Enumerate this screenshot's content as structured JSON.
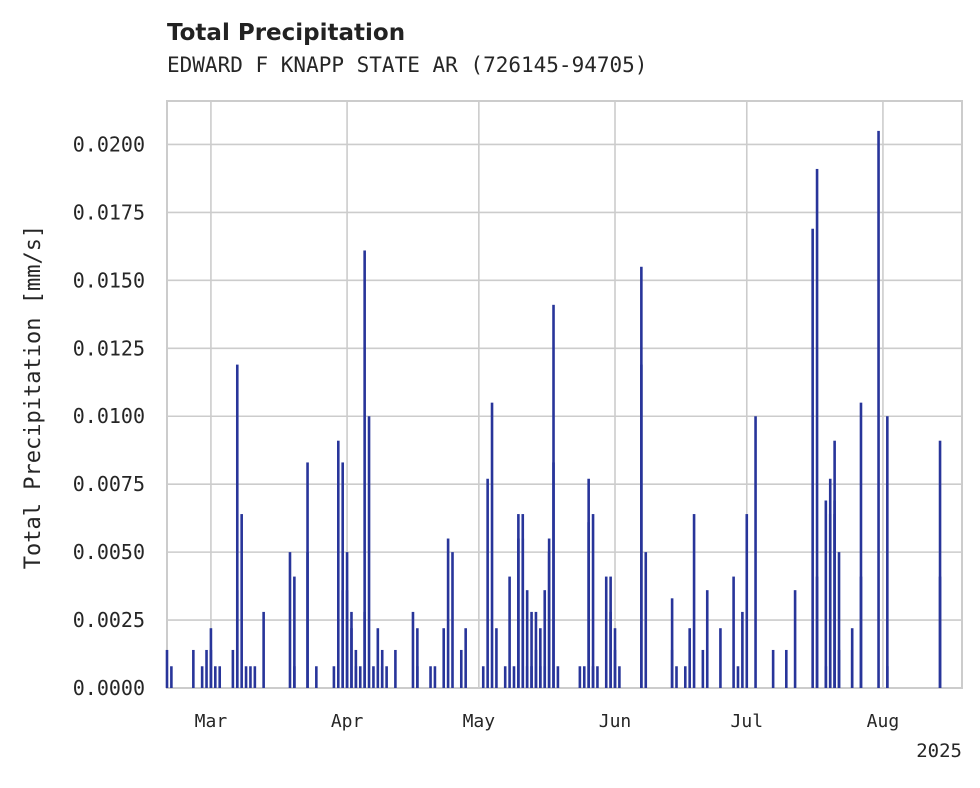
{
  "chart_data": {
    "type": "bar",
    "title": "Total Precipitation",
    "subtitle": "EDWARD F KNAPP STATE AR (726145-94705)",
    "ylabel": "Total Precipitation [mm/s]",
    "xlabel": "",
    "x_start": "2025-02-19",
    "x_end": "2025-08-19",
    "ylim": [
      0,
      0.0216
    ],
    "yticks": [
      "0.0000",
      "0.0025",
      "0.0050",
      "0.0075",
      "0.0100",
      "0.0125",
      "0.0150",
      "0.0175",
      "0.0200"
    ],
    "xticks": [
      {
        "date": "2025-03-01",
        "label": "Mar"
      },
      {
        "date": "2025-04-01",
        "label": "Apr"
      },
      {
        "date": "2025-05-01",
        "label": "May"
      },
      {
        "date": "2025-06-01",
        "label": "Jun"
      },
      {
        "date": "2025-07-01",
        "label": "Jul"
      },
      {
        "date": "2025-08-01",
        "label": "Aug"
      }
    ],
    "year_label": "2025",
    "grid": true,
    "bar_color": "#28359a",
    "series": [
      {
        "values": [
          [
            "2025-02-19",
            0.0014
          ],
          [
            "2025-02-20",
            0.0008
          ],
          [
            "2025-02-25",
            0.0014
          ],
          [
            "2025-02-27",
            0.0008
          ],
          [
            "2025-02-28",
            0.0014
          ],
          [
            "2025-03-01",
            0.0022
          ],
          [
            "2025-03-01",
            0.0014
          ],
          [
            "2025-03-02",
            0.0008
          ],
          [
            "2025-03-03",
            0.0008
          ],
          [
            "2025-03-06",
            0.0014
          ],
          [
            "2025-03-07",
            0.0036
          ],
          [
            "2025-03-07",
            0.0119
          ],
          [
            "2025-03-08",
            0.0064
          ],
          [
            "2025-03-09",
            0.0008
          ],
          [
            "2025-03-10",
            0.0008
          ],
          [
            "2025-03-11",
            0.0008
          ],
          [
            "2025-03-13",
            0.0028
          ],
          [
            "2025-03-19",
            0.005
          ],
          [
            "2025-03-20",
            0.0041
          ],
          [
            "2025-03-20",
            0.0008
          ],
          [
            "2025-03-23",
            0.0083
          ],
          [
            "2025-03-23",
            0.005
          ],
          [
            "2025-03-25",
            0.0008
          ],
          [
            "2025-03-29",
            0.0008
          ],
          [
            "2025-03-30",
            0.0091
          ],
          [
            "2025-03-31",
            0.0083
          ],
          [
            "2025-03-31",
            0.0036
          ],
          [
            "2025-04-01",
            0.005
          ],
          [
            "2025-04-01",
            0.0036
          ],
          [
            "2025-04-02",
            0.0028
          ],
          [
            "2025-04-02",
            0.0022
          ],
          [
            "2025-04-03",
            0.0014
          ],
          [
            "2025-04-03",
            0.0008
          ],
          [
            "2025-04-04",
            0.0008
          ],
          [
            "2025-04-05",
            0.0028
          ],
          [
            "2025-04-05",
            0.0161
          ],
          [
            "2025-04-06",
            0.01
          ],
          [
            "2025-04-07",
            0.0008
          ],
          [
            "2025-04-08",
            0.0022
          ],
          [
            "2025-04-09",
            0.0014
          ],
          [
            "2025-04-09",
            0.0008
          ],
          [
            "2025-04-10",
            0.0008
          ],
          [
            "2025-04-12",
            0.0014
          ],
          [
            "2025-04-16",
            0.0028
          ],
          [
            "2025-04-17",
            0.0022
          ],
          [
            "2025-04-17",
            0.0008
          ],
          [
            "2025-04-20",
            0.0008
          ],
          [
            "2025-04-21",
            0.0008
          ],
          [
            "2025-04-23",
            0.0022
          ],
          [
            "2025-04-24",
            0.0055
          ],
          [
            "2025-04-25",
            0.005
          ],
          [
            "2025-04-27",
            0.0014
          ],
          [
            "2025-04-28",
            0.0022
          ],
          [
            "2025-05-02",
            0.0008
          ],
          [
            "2025-05-03",
            0.0077
          ],
          [
            "2025-05-04",
            0.0105
          ],
          [
            "2025-05-05",
            0.0022
          ],
          [
            "2025-05-07",
            0.0008
          ],
          [
            "2025-05-08",
            0.0041
          ],
          [
            "2025-05-09",
            0.0008
          ],
          [
            "2025-05-10",
            0.0064
          ],
          [
            "2025-05-10",
            0.0055
          ],
          [
            "2025-05-11",
            0.0064
          ],
          [
            "2025-05-11",
            0.0055
          ],
          [
            "2025-05-12",
            0.0036
          ],
          [
            "2025-05-12",
            0.0008
          ],
          [
            "2025-05-13",
            0.0028
          ],
          [
            "2025-05-13",
            0.0008
          ],
          [
            "2025-05-14",
            0.0028
          ],
          [
            "2025-05-14",
            0.0014
          ],
          [
            "2025-05-15",
            0.0022
          ],
          [
            "2025-05-15",
            0.0008
          ],
          [
            "2025-05-16",
            0.0036
          ],
          [
            "2025-05-16",
            0.0008
          ],
          [
            "2025-05-17",
            0.005
          ],
          [
            "2025-05-17",
            0.0055
          ],
          [
            "2025-05-18",
            0.0083
          ],
          [
            "2025-05-18",
            0.0141
          ],
          [
            "2025-05-19",
            0.0008
          ],
          [
            "2025-05-24",
            0.0008
          ],
          [
            "2025-05-25",
            0.0008
          ],
          [
            "2025-05-26",
            0.0061
          ],
          [
            "2025-05-26",
            0.0077
          ],
          [
            "2025-05-27",
            0.0064
          ],
          [
            "2025-05-27",
            0.0008
          ],
          [
            "2025-05-28",
            0.0008
          ],
          [
            "2025-05-30",
            0.0041
          ],
          [
            "2025-05-31",
            0.0041
          ],
          [
            "2025-05-31",
            0.0028
          ],
          [
            "2025-06-01",
            0.0022
          ],
          [
            "2025-06-01",
            0.0014
          ],
          [
            "2025-06-02",
            0.0008
          ],
          [
            "2025-06-07",
            0.0119
          ],
          [
            "2025-06-07",
            0.0155
          ],
          [
            "2025-06-08",
            0.005
          ],
          [
            "2025-06-14",
            0.0033
          ],
          [
            "2025-06-14",
            0.0014
          ],
          [
            "2025-06-15",
            0.0008
          ],
          [
            "2025-06-17",
            0.0008
          ],
          [
            "2025-06-18",
            0.0022
          ],
          [
            "2025-06-19",
            0.0064
          ],
          [
            "2025-06-21",
            0.0014
          ],
          [
            "2025-06-22",
            0.0036
          ],
          [
            "2025-06-25",
            0.0022
          ],
          [
            "2025-06-28",
            0.0041
          ],
          [
            "2025-06-29",
            0.0008
          ],
          [
            "2025-06-30",
            0.0028
          ],
          [
            "2025-07-01",
            0.0064
          ],
          [
            "2025-07-03",
            0.01
          ],
          [
            "2025-07-07",
            0.0014
          ],
          [
            "2025-07-10",
            0.0014
          ],
          [
            "2025-07-12",
            0.0036
          ],
          [
            "2025-07-16",
            0.0169
          ],
          [
            "2025-07-17",
            0.0041
          ],
          [
            "2025-07-17",
            0.0191
          ],
          [
            "2025-07-19",
            0.0008
          ],
          [
            "2025-07-19",
            0.0069
          ],
          [
            "2025-07-20",
            0.0077
          ],
          [
            "2025-07-20",
            0.0064
          ],
          [
            "2025-07-21",
            0.0091
          ],
          [
            "2025-07-21",
            0.0069
          ],
          [
            "2025-07-21",
            0.0064
          ],
          [
            "2025-07-22",
            0.005
          ],
          [
            "2025-07-22",
            0.0014
          ],
          [
            "2025-07-25",
            0.0022
          ],
          [
            "2025-07-25",
            0.0014
          ],
          [
            "2025-07-27",
            0.0041
          ],
          [
            "2025-07-27",
            0.0105
          ],
          [
            "2025-07-31",
            0.0205
          ],
          [
            "2025-08-02",
            0.01
          ],
          [
            "2025-08-02",
            0.0008
          ],
          [
            "2025-08-14",
            0.0041
          ],
          [
            "2025-08-14",
            0.0091
          ]
        ]
      }
    ]
  }
}
